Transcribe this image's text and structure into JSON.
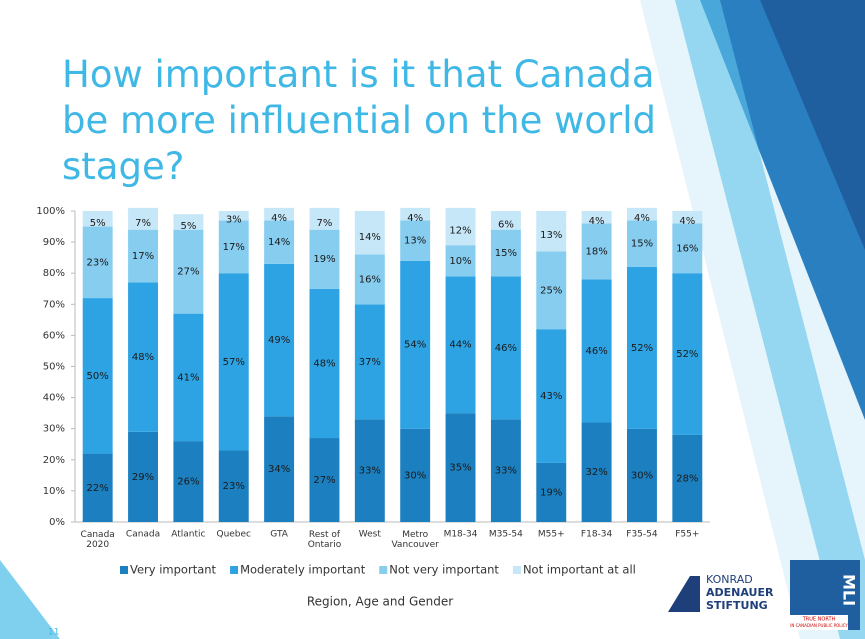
{
  "chart_data": {
    "type": "stacked_bar",
    "title": "How important is it that Canada be more influential on the world stage?",
    "x_label": "Region, Age and Gender",
    "categories": [
      "Canada\n2020",
      "Canada",
      "Atlantic",
      "Quebec",
      "GTA",
      "Rest of\nOntario",
      "West",
      "Metro\nVancouver",
      "M18-34",
      "M35-54",
      "M55+",
      "F18-34",
      "F35-54",
      "F55+"
    ],
    "series": [
      {
        "name": "Very important",
        "color": "#1c7fbf",
        "values": [
          22,
          29,
          26,
          23,
          34,
          27,
          33,
          30,
          35,
          33,
          19,
          32,
          30,
          28
        ],
        "value_labels": [
          "22%",
          "29%",
          "26%",
          "23%",
          "34%",
          "27%",
          "33%",
          "30%",
          "35%",
          "33%",
          "19%",
          "32%",
          "30%",
          "28%"
        ]
      },
      {
        "name": "Moderately important",
        "color": "#2ea3e3",
        "values": [
          50,
          48,
          41,
          57,
          49,
          48,
          37,
          54,
          44,
          46,
          43,
          46,
          52,
          52
        ],
        "value_labels": [
          "50%",
          "48%",
          "41%",
          "57%",
          "49%",
          "48%",
          "37%",
          "54%",
          "44%",
          "46%",
          "43%",
          "46%",
          "52%",
          "52%"
        ]
      },
      {
        "name": "Not very important",
        "color": "#86cdf0",
        "values": [
          23,
          17,
          27,
          17,
          14,
          19,
          16,
          13,
          10,
          15,
          25,
          18,
          15,
          16
        ],
        "value_labels": [
          "23%",
          "17%",
          "27%",
          "17%",
          "14%",
          "19%",
          "16%",
          "13%",
          "10%",
          "15%",
          "25%",
          "18%",
          "15%",
          "16%"
        ]
      },
      {
        "name": "Not important at all",
        "color": "#c6e7f8",
        "values": [
          5,
          7,
          5,
          3,
          4,
          7,
          14,
          4,
          12,
          6,
          13,
          4,
          4,
          4
        ],
        "value_labels": [
          "5%",
          "7%",
          "5%",
          "3%",
          "4%",
          "7%",
          "14%",
          "4%",
          "12%",
          "6%",
          "13%",
          "4%",
          "4%",
          "4%"
        ]
      }
    ],
    "ylim": [
      0,
      100
    ],
    "yticks": [
      {
        "value": 0,
        "label": "0%"
      },
      {
        "value": 10,
        "label": "10%"
      },
      {
        "value": 20,
        "label": "20%"
      },
      {
        "value": 30,
        "label": "30%"
      },
      {
        "value": 40,
        "label": "40%"
      },
      {
        "value": 50,
        "label": "50%"
      },
      {
        "value": 60,
        "label": "60%"
      },
      {
        "value": 70,
        "label": "70%"
      },
      {
        "value": 80,
        "label": "80%"
      },
      {
        "value": 90,
        "label": "90%"
      },
      {
        "value": 100,
        "label": "100%"
      }
    ],
    "legend": "bottom",
    "grid": false
  },
  "page_number": "11",
  "logos": [
    [
      "KONRAD",
      "ADENAUER",
      "STIFTUNG"
    ],
    [
      "MLI",
      "TRUE NORTH",
      "IN CANADIAN PUBLIC POLICY"
    ]
  ]
}
